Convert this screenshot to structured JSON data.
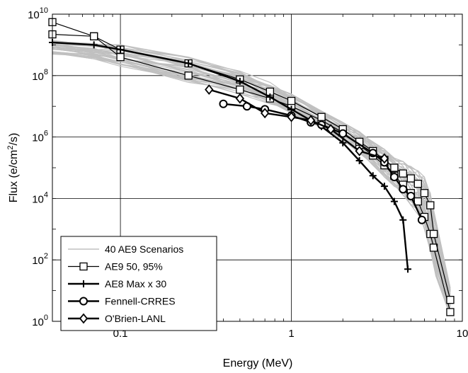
{
  "chart_data": {
    "type": "line",
    "xlabel": "Energy (MeV)",
    "ylabel_parts": {
      "pre": "Flux (e/cm",
      "sup": "2",
      "post": "/s)"
    },
    "xscale": "log",
    "yscale": "log",
    "xlim": [
      0.04,
      10
    ],
    "ylim": [
      1,
      10000000000
    ],
    "grid": true,
    "legend_position": "bottom-left",
    "x_ticks": [
      {
        "value": 0.1,
        "label": "0.1"
      },
      {
        "value": 1,
        "label": "1"
      },
      {
        "value": 10,
        "label": "10"
      }
    ],
    "y_ticks": [
      {
        "value": 1,
        "base": "10",
        "exp": "0"
      },
      {
        "value": 100,
        "base": "10",
        "exp": "2"
      },
      {
        "value": 10000,
        "base": "10",
        "exp": "4"
      },
      {
        "value": 1000000,
        "base": "10",
        "exp": "6"
      },
      {
        "value": 100000000,
        "base": "10",
        "exp": "8"
      },
      {
        "value": 10000000000,
        "base": "10",
        "exp": "10"
      }
    ],
    "legend": [
      {
        "label": "40 AE9 Scenarios",
        "series": "scenarios"
      },
      {
        "label": "AE9 50, 95%",
        "series": "ae9"
      },
      {
        "label": "AE8 Max x 30",
        "series": "ae8"
      },
      {
        "label": "Fennell-CRRES",
        "series": "fennell"
      },
      {
        "label": "O'Brien-LANL",
        "series": "obrien"
      }
    ],
    "scenario_band": {
      "color": "#c0c0c0",
      "count": 40,
      "x": [
        0.04,
        0.07,
        0.1,
        0.25,
        0.5,
        0.75,
        1.0,
        1.5,
        2.0,
        2.5,
        3.0,
        3.5,
        4.0,
        4.5,
        5.0,
        5.5,
        6.0,
        6.5,
        7.0,
        8.5
      ],
      "low": [
        500000000.0,
        350000000.0,
        200000000.0,
        60000000.0,
        25000000.0,
        12000000.0,
        6000000.0,
        2000000.0,
        700000.0,
        300000.0,
        120000.0,
        50000.0,
        25000.0,
        12000.0,
        6000.0,
        3000.0,
        1000.0,
        200,
        30,
        1.5
      ],
      "high": [
        1400000000.0,
        1100000000.0,
        1000000000.0,
        400000000.0,
        140000000.0,
        60000000.0,
        25000000.0,
        7000000.0,
        3000000.0,
        1500000.0,
        700000.0,
        400000.0,
        250000.0,
        160000.0,
        110000.0,
        80000.0,
        50000.0,
        15000.0,
        2000.0,
        12
      ]
    },
    "series": [
      {
        "id": "ae9_50",
        "legend": "ae9",
        "marker": "square",
        "x": [
          0.04,
          0.07,
          0.1,
          0.25,
          0.5,
          0.75,
          1.0,
          1.5,
          2.0,
          2.5,
          3.0,
          3.5,
          4.0,
          4.5,
          5.0,
          5.5,
          6.0,
          6.5,
          6.8,
          8.5
        ],
        "y": [
          2200000000.0,
          1900000000.0,
          400000000.0,
          100000000.0,
          35000000.0,
          18000000.0,
          10000000.0,
          3500000.0,
          1400000.0,
          550000.0,
          250000.0,
          120000.0,
          55000.0,
          28000.0,
          15000.0,
          8000.0,
          2500.0,
          700,
          250,
          2
        ]
      },
      {
        "id": "ae9_95",
        "legend": "ae9",
        "marker": "square",
        "x": [
          0.04,
          0.07,
          0.1,
          0.25,
          0.5,
          0.75,
          1.0,
          1.5,
          2.0,
          2.5,
          3.0,
          3.5,
          4.0,
          4.5,
          5.0,
          5.5,
          6.0,
          6.5,
          6.8,
          8.5
        ],
        "y": [
          5500000000.0,
          1900000000.0,
          700000000.0,
          250000000.0,
          75000000.0,
          30000000.0,
          15000000.0,
          4500000.0,
          1800000.0,
          700000.0,
          350000.0,
          180000.0,
          100000.0,
          65000.0,
          45000.0,
          30000.0,
          15000.0,
          6000.0,
          700,
          5
        ]
      },
      {
        "id": "ae8",
        "legend": "ae8",
        "marker": "plus",
        "x": [
          0.04,
          0.07,
          0.1,
          0.25,
          0.5,
          0.75,
          1.0,
          1.5,
          2.0,
          2.5,
          3.0,
          3.5,
          4.0,
          4.5,
          4.8
        ],
        "y": [
          1200000000.0,
          1000000000.0,
          700000000.0,
          250000000.0,
          65000000.0,
          20000000.0,
          8000000.0,
          2200000.0,
          650000.0,
          170000.0,
          55000.0,
          25000.0,
          8000.0,
          2000.0,
          50
        ]
      },
      {
        "id": "fennell",
        "legend": "fennell",
        "marker": "circle",
        "x": [
          0.4,
          0.55,
          0.7,
          1.0,
          1.3,
          1.5,
          2.0,
          3.0,
          3.5,
          4.0,
          4.5,
          5.0,
          5.8
        ],
        "y": [
          12000000.0,
          10000000.0,
          8000000.0,
          5000000.0,
          3000000.0,
          2500000.0,
          1300000.0,
          300000.0,
          150000.0,
          50000.0,
          20000.0,
          12000.0,
          2000.0
        ]
      },
      {
        "id": "obrien",
        "legend": "obrien",
        "marker": "diamond",
        "x": [
          0.33,
          0.5,
          0.7,
          1.0,
          1.3,
          1.7,
          2.5,
          3.5
        ],
        "y": [
          35000000.0,
          18000000.0,
          6000000.0,
          4500000.0,
          3500000.0,
          1800000.0,
          350000.0,
          200000.0
        ]
      }
    ]
  }
}
